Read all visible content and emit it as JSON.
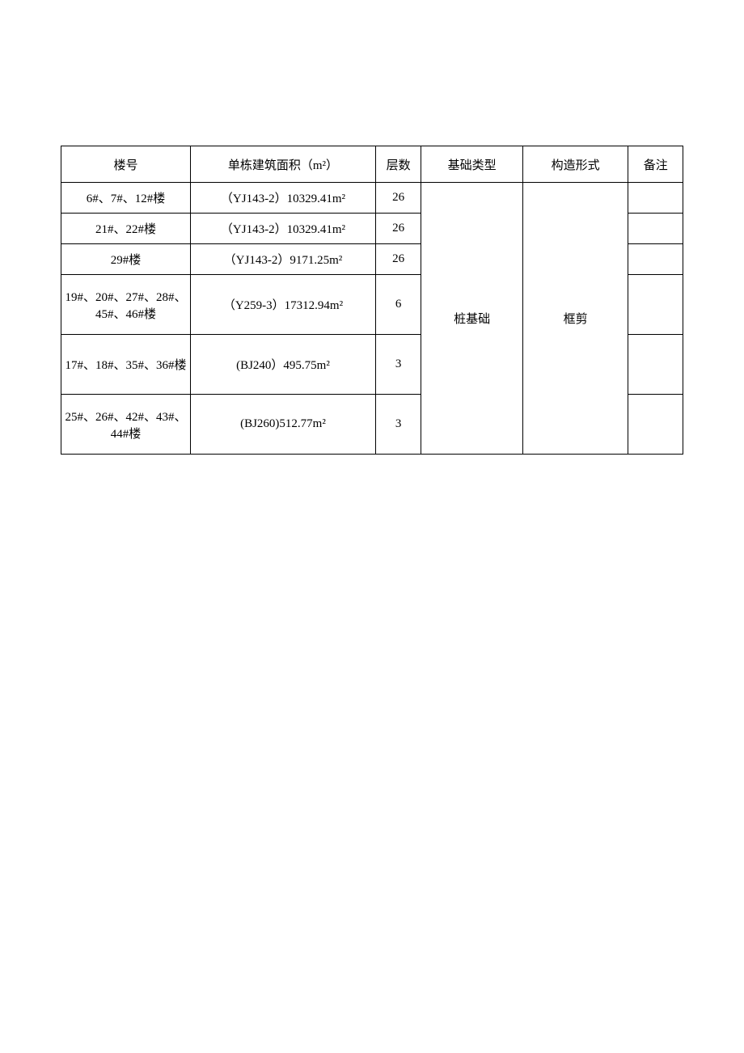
{
  "table": {
    "columns": [
      "楼号",
      "单栋建筑面积（m²）",
      "层数",
      "基础类型",
      "构造形式",
      "备注"
    ],
    "merged_foundation": "桩基础",
    "merged_structure": "框剪",
    "rows": [
      {
        "building": "6#、7#、12#楼",
        "area": "（YJ143-2）10329.41m²",
        "floors": "26",
        "remark": "",
        "height_class": "row-normal"
      },
      {
        "building": "21#、22#楼",
        "area": "（YJ143-2）10329.41m²",
        "floors": "26",
        "remark": "",
        "height_class": "row-normal"
      },
      {
        "building": "29#楼",
        "area": "（YJ143-2）9171.25m²",
        "floors": "26",
        "remark": "",
        "height_class": "row-normal"
      },
      {
        "building": "19#、20#、27#、28#、45#、46#楼",
        "area": "（Y259-3）17312.94m²",
        "floors": "6",
        "remark": "",
        "height_class": "row-tall"
      },
      {
        "building": "17#、18#、35#、36#楼",
        "area": "(BJ240）495.75m²",
        "floors": "3",
        "remark": "",
        "height_class": "row-tall"
      },
      {
        "building": "25#、26#、42#、43#、44#楼",
        "area": "(BJ260)512.77m²",
        "floors": "3",
        "remark": "",
        "height_class": "row-tall"
      }
    ]
  }
}
